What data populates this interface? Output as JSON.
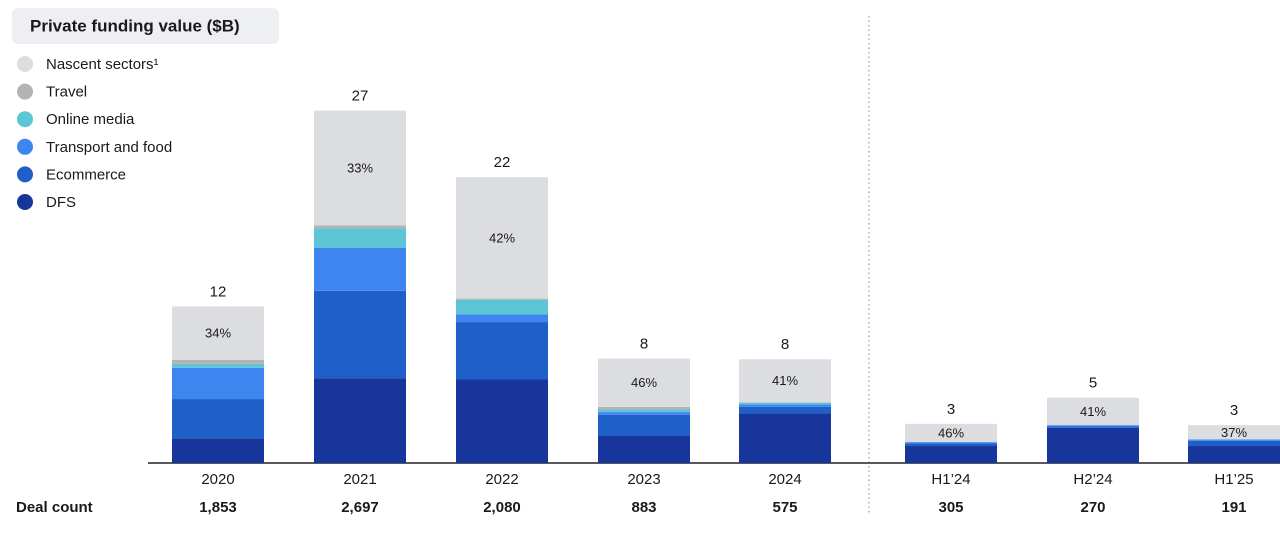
{
  "chart_data": {
    "type": "stacked_bar",
    "title": "Private funding value ($B)",
    "categories": [
      "2020",
      "2021",
      "2022",
      "2023",
      "2024",
      "H1’24",
      "H2’24",
      "H1’25"
    ],
    "series": [
      {
        "name": "Nascent sectors¹",
        "color": "#dcdde1",
        "values": [
          4.1,
          8.8,
          9.3,
          3.7,
          3.3,
          1.4,
          2.1,
          1.1
        ]
      },
      {
        "name": "Travel",
        "color": "#b3b3b3",
        "values": [
          0.3,
          0.2,
          0.1,
          0.2,
          0.05,
          0,
          0,
          0
        ]
      },
      {
        "name": "Online media",
        "color": "#5cc6d6",
        "values": [
          0.3,
          1.5,
          1.1,
          0.2,
          0.1,
          0,
          0,
          0
        ]
      },
      {
        "name": "Transport and food",
        "color": "#3d86f0",
        "values": [
          2.4,
          3.3,
          0.6,
          0.2,
          0.2,
          0.1,
          0.1,
          0.1
        ]
      },
      {
        "name": "Ecommerce",
        "color": "#1f5fc8",
        "values": [
          3.0,
          6.7,
          4.4,
          1.6,
          0.5,
          0.2,
          0.1,
          0.4
        ]
      },
      {
        "name": "DFS",
        "color": "#17359a",
        "values": [
          1.9,
          6.5,
          6.4,
          2.1,
          3.8,
          1.3,
          2.7,
          1.3
        ]
      }
    ],
    "totals": [
      12,
      27,
      22,
      8,
      8,
      3,
      5,
      3
    ],
    "nascent_share": {
      "values": [
        34,
        33,
        42,
        46,
        41,
        46,
        41,
        37
      ],
      "value_labels": [
        "34%",
        "33%",
        "42%",
        "46%",
        "41%",
        "46%",
        "41%",
        "37%"
      ]
    },
    "deal_count": {
      "label": "Deal count",
      "values": [
        1853,
        2697,
        2080,
        883,
        575,
        305,
        270,
        191
      ],
      "value_labels": [
        "1,853",
        "2,697",
        "2,080",
        "883",
        "575",
        "305",
        "270",
        "191"
      ]
    }
  }
}
